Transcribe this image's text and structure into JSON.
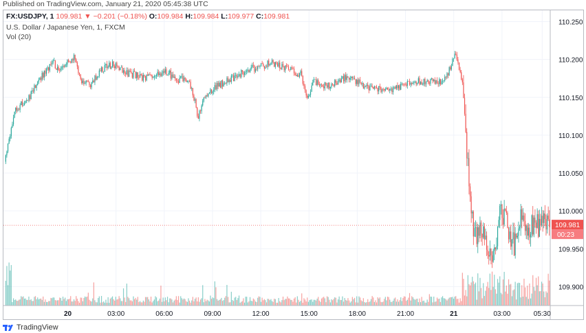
{
  "header": {
    "published": "Published on TradingView.com, January 21, 2020 05:45:38 UTC"
  },
  "legend": {
    "symbol": "FX:USDJPY, 1",
    "last": "109.981",
    "change_arrow": "▼",
    "change": "−0.201 (−0.18%)",
    "o_label": "O:",
    "o_value": "109.984",
    "h_label": "H:",
    "h_value": "109.984",
    "l_label": "L:",
    "l_value": "109.977",
    "c_label": "C:",
    "c_value": "109.981",
    "title": "U.S. Dollar / Japanese Yen, 1, FXCM",
    "volume": "Vol (20)"
  },
  "price_badge": {
    "price": "109.981",
    "countdown": "00:23"
  },
  "footer": {
    "brand": "TradingView"
  },
  "colors": {
    "up": "#26a69a",
    "down": "#ef5350",
    "grid": "#f0f3fa",
    "axis_text": "#131722"
  },
  "chart_data": {
    "type": "candlestick",
    "symbol": "USDJPY",
    "interval": "1 minute",
    "y_ticks": [
      109.9,
      109.95,
      110.0,
      110.05,
      110.1,
      110.15,
      110.2,
      110.25
    ],
    "y_tick_labels": [
      "109.900",
      "109.950",
      "110.000",
      "110.050",
      "110.100",
      "110.150",
      "110.200",
      "110.250"
    ],
    "ylim": [
      109.875,
      110.265
    ],
    "x_ticks_hours": [
      0,
      3,
      6,
      9,
      12,
      15,
      18,
      21,
      24,
      27,
      29.5
    ],
    "x_tick_labels": [
      "20",
      "03:00",
      "06:00",
      "09:00",
      "12:00",
      "15:00",
      "18:00",
      "21:00",
      "21",
      "03:00",
      "05:30"
    ],
    "xlim_hours": [
      -4,
      30
    ],
    "close_path": [
      [
        -3.9,
        110.065
      ],
      [
        -3.3,
        110.135
      ],
      [
        -2.5,
        110.145
      ],
      [
        -1.8,
        110.175
      ],
      [
        -0.9,
        110.195
      ],
      [
        -0.4,
        110.185
      ],
      [
        0.4,
        110.205
      ],
      [
        0.8,
        110.175
      ],
      [
        1.3,
        110.165
      ],
      [
        2.0,
        110.185
      ],
      [
        2.8,
        110.195
      ],
      [
        3.3,
        110.185
      ],
      [
        4.1,
        110.18
      ],
      [
        5.0,
        110.175
      ],
      [
        6.1,
        110.185
      ],
      [
        6.8,
        110.172
      ],
      [
        7.4,
        110.175
      ],
      [
        7.8,
        110.155
      ],
      [
        8.1,
        110.125
      ],
      [
        8.5,
        110.15
      ],
      [
        9.3,
        110.165
      ],
      [
        10.2,
        110.175
      ],
      [
        11.0,
        110.185
      ],
      [
        11.8,
        110.19
      ],
      [
        12.6,
        110.195
      ],
      [
        13.5,
        110.19
      ],
      [
        14.5,
        110.18
      ],
      [
        14.9,
        110.152
      ],
      [
        15.3,
        110.17
      ],
      [
        16.2,
        110.165
      ],
      [
        17.0,
        110.175
      ],
      [
        17.6,
        110.178
      ],
      [
        18.3,
        110.165
      ],
      [
        19.5,
        110.162
      ],
      [
        20.3,
        110.16
      ],
      [
        21.0,
        110.168
      ],
      [
        21.9,
        110.172
      ],
      [
        23.1,
        110.17
      ],
      [
        23.6,
        110.18
      ],
      [
        24.1,
        110.208
      ],
      [
        24.5,
        110.175
      ],
      [
        24.7,
        110.13
      ],
      [
        24.9,
        110.05
      ],
      [
        25.1,
        109.99
      ],
      [
        25.4,
        109.96
      ],
      [
        25.7,
        109.985
      ],
      [
        26.0,
        109.955
      ],
      [
        26.4,
        109.925
      ],
      [
        26.6,
        109.96
      ],
      [
        26.9,
        110.005
      ],
      [
        27.4,
        109.975
      ],
      [
        27.8,
        109.955
      ],
      [
        28.2,
        109.995
      ],
      [
        28.6,
        109.975
      ],
      [
        29.0,
        109.985
      ],
      [
        29.4,
        109.98
      ],
      [
        29.7,
        109.981
      ]
    ],
    "last_price": 109.981
  }
}
